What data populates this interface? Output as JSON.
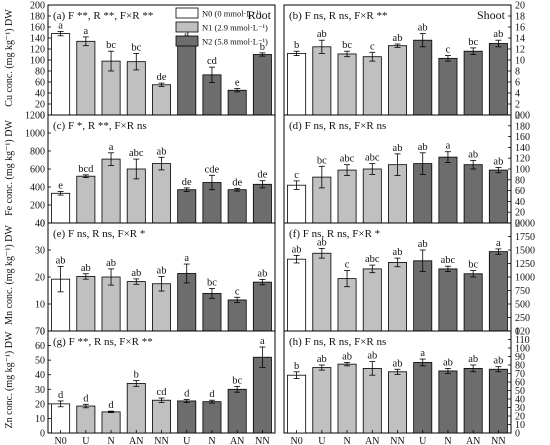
{
  "figure": {
    "x_categories": [
      "N0",
      "U",
      "N",
      "AN",
      "NN",
      "U",
      "N",
      "AN",
      "NN"
    ],
    "legend": [
      {
        "label": "N0 (0 mmol·L⁻¹)",
        "color": "#ffffff"
      },
      {
        "label": "N1 (2.9 mmol·L⁻¹)",
        "color": "#c0c0c0"
      },
      {
        "label": "N2 (5.8 mmol·L⁻¹)",
        "color": "#6d6d6d"
      }
    ],
    "colors": [
      "#ffffff",
      "#c0c0c0",
      "#c0c0c0",
      "#c0c0c0",
      "#c0c0c0",
      "#6d6d6d",
      "#6d6d6d",
      "#6d6d6d",
      "#6d6d6d"
    ],
    "rows": [
      {
        "ylabel": "Cu conc. (mg kg⁻¹) DW"
      },
      {
        "ylabel": "Fe conc. (mg kg⁻¹) DW"
      },
      {
        "ylabel": "Mn conc. (mg kg⁻¹) DW"
      },
      {
        "ylabel": "Zn conc. (mg kg⁻¹) DW"
      }
    ]
  },
  "chart_data": [
    {
      "type": "bar",
      "panel": "(a)",
      "stats": "F **, R **, F×R **",
      "title": "Root",
      "yaxis": "left",
      "ylim": [
        0,
        200
      ],
      "yticks": [
        0,
        20,
        40,
        60,
        80,
        100,
        120,
        140,
        160,
        180,
        200
      ],
      "values": [
        148,
        134,
        98,
        97,
        55,
        134,
        73,
        45,
        110
      ],
      "errors": [
        4,
        8,
        18,
        15,
        3,
        4,
        14,
        3,
        3
      ],
      "letters": [
        "a",
        "a",
        "bc",
        "bc",
        "de",
        "a",
        "cd",
        "e",
        "b"
      ]
    },
    {
      "type": "bar",
      "panel": "(b)",
      "stats": "F ns, R ns, F×R **",
      "title": "Shoot",
      "yaxis": "right",
      "ylim": [
        0,
        20
      ],
      "yticks": [
        0,
        2,
        4,
        6,
        8,
        10,
        12,
        14,
        16,
        18,
        20
      ],
      "values": [
        11.2,
        12.4,
        11.1,
        10.6,
        12.6,
        13.6,
        10.3,
        11.6,
        13.0
      ],
      "errors": [
        0.4,
        1.2,
        0.5,
        0.8,
        0.3,
        1.2,
        0.5,
        0.6,
        0.6
      ],
      "letters": [
        "b",
        "ab",
        "bc",
        "c",
        "ab",
        "ab",
        "c",
        "bc",
        "ab"
      ]
    },
    {
      "type": "bar",
      "panel": "(c)",
      "stats": "F *, R **, F×R ns",
      "yaxis": "left",
      "ylim": [
        0,
        1200
      ],
      "yticks": [
        0,
        200,
        400,
        600,
        800,
        1000,
        1200
      ],
      "values": [
        330,
        520,
        710,
        600,
        660,
        370,
        450,
        370,
        430
      ],
      "errors": [
        20,
        15,
        70,
        110,
        70,
        20,
        80,
        15,
        40
      ],
      "letters": [
        "e",
        "bcd",
        "a",
        "abc",
        "ab",
        "de",
        "cde",
        "de",
        "de"
      ]
    },
    {
      "type": "bar",
      "panel": "(d)",
      "stats": "F ns, R ns, F×R ns",
      "yaxis": "right",
      "ylim": [
        0,
        200
      ],
      "yticks": [
        0,
        20,
        40,
        60,
        80,
        100,
        120,
        140,
        160,
        180,
        200
      ],
      "values": [
        70,
        85,
        98,
        100,
        108,
        110,
        122,
        108,
        98
      ],
      "errors": [
        8,
        20,
        10,
        10,
        20,
        20,
        10,
        8,
        5
      ],
      "letters": [
        "c",
        "bc",
        "abc",
        "abc",
        "ab",
        "ab",
        "a",
        "ab",
        "ab"
      ]
    },
    {
      "type": "bar",
      "panel": "(e)",
      "stats": "F ns, R ns, F×R *",
      "yaxis": "left",
      "ylim": [
        0,
        40
      ],
      "yticks": [
        0,
        10,
        20,
        30,
        40
      ],
      "values": [
        19.2,
        20.2,
        20.0,
        18.3,
        17.5,
        21.3,
        13.9,
        11.5,
        18.1
      ],
      "errors": [
        4.7,
        1.0,
        3.0,
        1.0,
        2.7,
        3.5,
        1.8,
        1.0,
        1.0
      ],
      "letters": [
        "ab",
        "ab",
        "ab",
        "ab",
        "ab",
        "a",
        "bc",
        "c",
        "ab"
      ]
    },
    {
      "type": "bar",
      "panel": "(f)",
      "stats": "F ns, R ns, F×R *",
      "yaxis": "right",
      "ylim": [
        0,
        2000
      ],
      "yticks": [
        0,
        250,
        500,
        750,
        1000,
        1250,
        1500,
        1750,
        2000
      ],
      "values": [
        1330,
        1440,
        970,
        1150,
        1270,
        1300,
        1150,
        1060,
        1470
      ],
      "errors": [
        70,
        90,
        150,
        70,
        80,
        200,
        50,
        60,
        50
      ],
      "letters": [
        "ab",
        "ab",
        "c",
        "abc",
        "ab",
        "ab",
        "abc",
        "bc",
        "a"
      ]
    },
    {
      "type": "bar",
      "panel": "(g)",
      "stats": "F **, R ns, F×R **",
      "yaxis": "left",
      "ylim": [
        0,
        70
      ],
      "yticks": [
        0,
        10,
        20,
        30,
        40,
        50,
        60,
        70
      ],
      "values": [
        20,
        18.5,
        14.5,
        34,
        22.5,
        22,
        21.5,
        30,
        52
      ],
      "errors": [
        2,
        1.2,
        0.5,
        2,
        1.5,
        1,
        1,
        2,
        7
      ],
      "letters": [
        "d",
        "d",
        "d",
        "b",
        "cd",
        "d",
        "d",
        "bc",
        "a"
      ]
    },
    {
      "type": "bar",
      "panel": "(h)",
      "stats": "F ns, R ns, F×R ns",
      "yaxis": "right",
      "ylim": [
        0,
        120
      ],
      "yticks": [
        0,
        10,
        20,
        30,
        40,
        50,
        60,
        70,
        80,
        90,
        100,
        110,
        120
      ],
      "values": [
        68,
        77,
        81,
        76,
        72,
        83,
        73,
        76,
        75
      ],
      "errors": [
        4,
        3,
        2,
        8,
        3,
        4,
        3,
        4,
        3
      ],
      "letters": [
        "b",
        "ab",
        "ab",
        "ab",
        "ab",
        "a",
        "ab",
        "ab",
        "ab"
      ]
    }
  ]
}
